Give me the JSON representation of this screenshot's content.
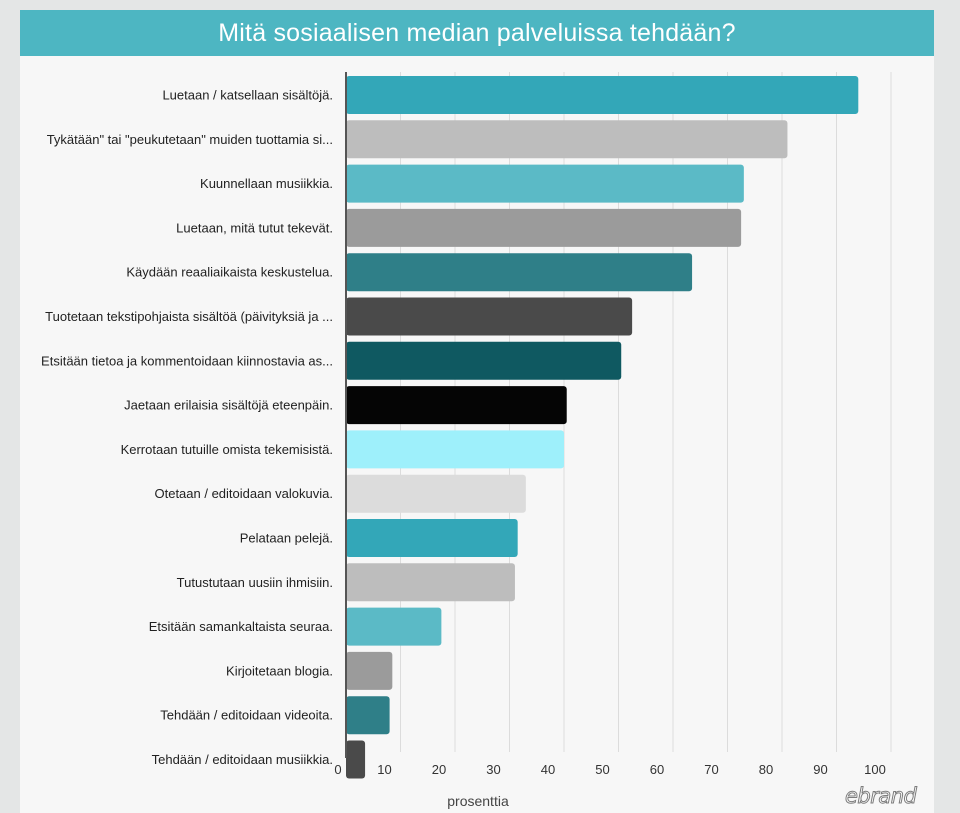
{
  "chart_data": {
    "type": "bar",
    "orientation": "horizontal",
    "title": "Mitä sosiaalisen median palveluissa tehdään?",
    "xlabel": "prosenttia",
    "xlim": [
      0,
      100
    ],
    "xticks": [
      0,
      10,
      20,
      30,
      40,
      50,
      60,
      70,
      80,
      90,
      100
    ],
    "grid": "vertical",
    "categories": [
      "Luetaan / katsellaan sisältöjä.",
      "Tykätään\" tai \"peukutetaan\" muiden tuottamia si...",
      "Kuunnellaan musiikkia.",
      "Luetaan, mitä tutut tekevät.",
      "Käydään reaaliaikaista keskustelua.",
      "Tuotetaan tekstipohjaista sisältöä (päivityksiä ja ...",
      "Etsitään tietoa ja kommentoidaan kiinnostavia as...",
      "Jaetaan erilaisia sisältöjä eteenpäin.",
      "Kerrotaan tutuille omista tekemisistä.",
      "Otetaan / editoidaan valokuvia.",
      "Pelataan pelejä.",
      "Tutustutaan uusiin ihmisiin.",
      "Etsitään samankaltaista seuraa.",
      "Kirjoitetaan blogia.",
      "Tehdään / editoidaan videoita.",
      "Tehdään / editoidaan musiikkia."
    ],
    "values": [
      94,
      81,
      73,
      72.5,
      63.5,
      52.5,
      50.5,
      40.5,
      40,
      33,
      31.5,
      31,
      17.5,
      8.5,
      8,
      3.5
    ],
    "colors": [
      "#33a7b8",
      "#bdbdbd",
      "#5bbac6",
      "#9b9b9b",
      "#2f7f88",
      "#4a4a4a",
      "#0f5961",
      "#050505",
      "#9ef0fb",
      "#dcdcdc",
      "#33a7b8",
      "#bdbdbd",
      "#5bbac6",
      "#9b9b9b",
      "#2f7f88",
      "#4a4a4a"
    ]
  },
  "logo": "ebrand"
}
